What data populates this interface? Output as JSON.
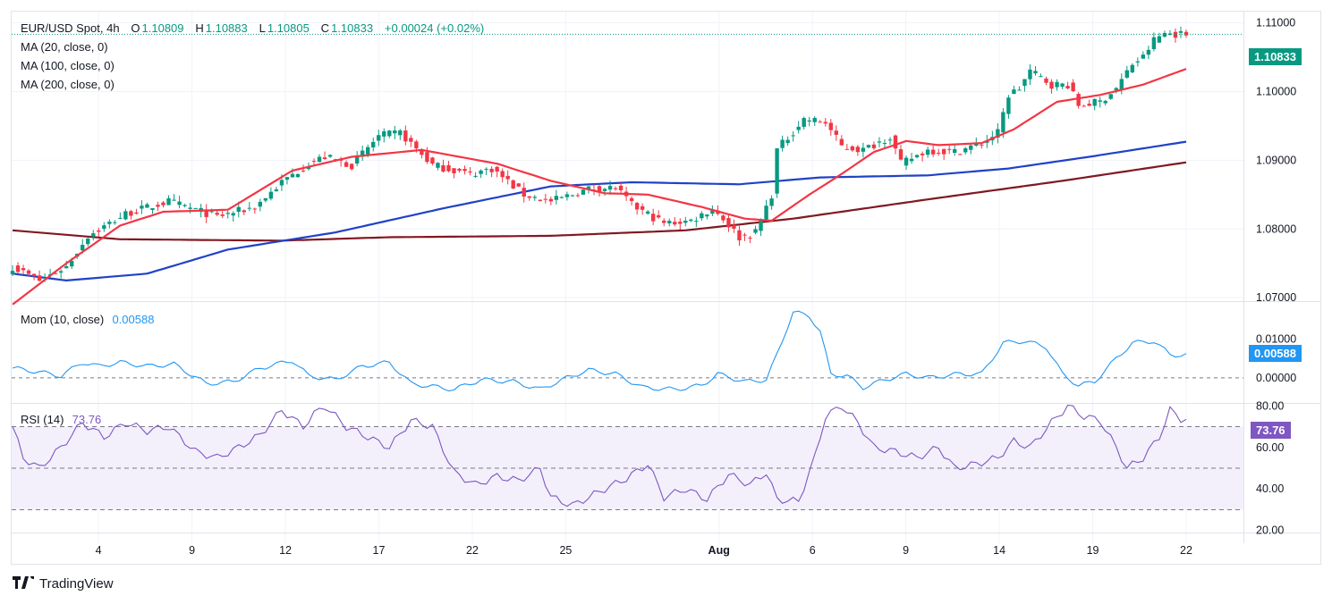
{
  "header": {
    "symbol": "EUR/USD Spot, 4h",
    "o_label": "O",
    "o": "1.10809",
    "h_label": "H",
    "h": "1.10883",
    "l_label": "L",
    "l": "1.10805",
    "c_label": "C",
    "c": "1.10833",
    "change": "+0.00024 (+0.02%)",
    "ma20": "MA (20, close, 0)",
    "ma100": "MA (100, close, 0)",
    "ma200": "MA (200, close, 0)"
  },
  "price_badge": "1.10833",
  "mom": {
    "label": "Mom (10, close)",
    "value": "0.00588"
  },
  "rsi": {
    "label": "RSI (14)",
    "value": "73.76"
  },
  "footer": {
    "brand": "TradingView"
  },
  "colors": {
    "up": "#089981",
    "down": "#f23645",
    "ma20": "#f23645",
    "ma100": "#2042c6",
    "ma200": "#801922",
    "mom": "#2196f3",
    "rsi": "#7e57c2"
  },
  "chart_data": [
    {
      "type": "candlestick",
      "title": "EUR/USD Spot, 4h",
      "x_ticks": [
        "4",
        "9",
        "12",
        "17",
        "22",
        "25",
        "Aug",
        "6",
        "9",
        "14",
        "19",
        "22"
      ],
      "y_ticks": [
        "1.11000",
        "1.10000",
        "1.09000",
        "1.08000",
        "1.07000"
      ],
      "ylim": [
        1.0695,
        1.1115
      ],
      "anchors": [
        {
          "x": 0,
          "close": 1.0745
        },
        {
          "x": 5,
          "close": 1.0725
        },
        {
          "x": 10,
          "close": 1.0745
        },
        {
          "x": 14,
          "close": 1.079
        },
        {
          "x": 21,
          "close": 1.0822
        },
        {
          "x": 29,
          "close": 1.084
        },
        {
          "x": 38,
          "close": 1.0818
        },
        {
          "x": 45,
          "close": 1.0832
        },
        {
          "x": 50,
          "close": 1.0868
        },
        {
          "x": 55,
          "close": 1.0895
        },
        {
          "x": 58,
          "close": 1.0905
        },
        {
          "x": 63,
          "close": 1.0893
        },
        {
          "x": 68,
          "close": 1.0935
        },
        {
          "x": 72,
          "close": 1.094
        },
        {
          "x": 78,
          "close": 1.0893
        },
        {
          "x": 85,
          "close": 1.088
        },
        {
          "x": 89,
          "close": 1.0888
        },
        {
          "x": 95,
          "close": 1.085
        },
        {
          "x": 100,
          "close": 1.084
        },
        {
          "x": 107,
          "close": 1.0858
        },
        {
          "x": 112,
          "close": 1.086
        },
        {
          "x": 115,
          "close": 1.0835
        },
        {
          "x": 121,
          "close": 1.0808
        },
        {
          "x": 126,
          "close": 1.0812
        },
        {
          "x": 130,
          "close": 1.083
        },
        {
          "x": 132,
          "close": 1.0815
        },
        {
          "x": 135,
          "close": 1.0788
        },
        {
          "x": 138,
          "close": 1.0795
        },
        {
          "x": 141,
          "close": 1.085
        },
        {
          "x": 142,
          "close": 1.0915
        },
        {
          "x": 147,
          "close": 1.096
        },
        {
          "x": 151,
          "close": 1.0955
        },
        {
          "x": 154,
          "close": 1.092
        },
        {
          "x": 158,
          "close": 1.0915
        },
        {
          "x": 163,
          "close": 1.0935
        },
        {
          "x": 165,
          "close": 1.0895
        },
        {
          "x": 170,
          "close": 1.0915
        },
        {
          "x": 175,
          "close": 1.0912
        },
        {
          "x": 180,
          "close": 1.0925
        },
        {
          "x": 183,
          "close": 1.094
        },
        {
          "x": 185,
          "close": 1.0995
        },
        {
          "x": 187,
          "close": 1.1005
        },
        {
          "x": 189,
          "close": 1.103
        },
        {
          "x": 193,
          "close": 1.101
        },
        {
          "x": 196,
          "close": 1.101
        },
        {
          "x": 198,
          "close": 1.098
        },
        {
          "x": 202,
          "close": 1.0985
        },
        {
          "x": 205,
          "close": 1.1005
        },
        {
          "x": 208,
          "close": 1.104
        },
        {
          "x": 210,
          "close": 1.105
        },
        {
          "x": 212,
          "close": 1.1075
        },
        {
          "x": 214,
          "close": 1.1085
        },
        {
          "x": 218,
          "close": 1.1083
        }
      ],
      "ma20_anchors": [
        {
          "x": 0,
          "y": 1.069
        },
        {
          "x": 10,
          "y": 1.075
        },
        {
          "x": 20,
          "y": 1.0805
        },
        {
          "x": 28,
          "y": 1.0825
        },
        {
          "x": 40,
          "y": 1.0828
        },
        {
          "x": 52,
          "y": 1.0885
        },
        {
          "x": 63,
          "y": 1.0905
        },
        {
          "x": 76,
          "y": 1.0915
        },
        {
          "x": 90,
          "y": 1.0895
        },
        {
          "x": 100,
          "y": 1.087
        },
        {
          "x": 110,
          "y": 1.0852
        },
        {
          "x": 118,
          "y": 1.085
        },
        {
          "x": 128,
          "y": 1.0832
        },
        {
          "x": 136,
          "y": 1.0815
        },
        {
          "x": 141,
          "y": 1.0812
        },
        {
          "x": 148,
          "y": 1.085
        },
        {
          "x": 154,
          "y": 1.088
        },
        {
          "x": 160,
          "y": 1.0912
        },
        {
          "x": 166,
          "y": 1.0928
        },
        {
          "x": 172,
          "y": 1.0922
        },
        {
          "x": 180,
          "y": 1.0925
        },
        {
          "x": 186,
          "y": 1.0945
        },
        {
          "x": 194,
          "y": 1.0985
        },
        {
          "x": 202,
          "y": 1.0995
        },
        {
          "x": 210,
          "y": 1.101
        },
        {
          "x": 218,
          "y": 1.1033
        }
      ],
      "ma100_anchors": [
        {
          "x": 0,
          "y": 1.0735
        },
        {
          "x": 10,
          "y": 1.0725
        },
        {
          "x": 25,
          "y": 1.0735
        },
        {
          "x": 40,
          "y": 1.077
        },
        {
          "x": 60,
          "y": 1.0795
        },
        {
          "x": 80,
          "y": 1.083
        },
        {
          "x": 100,
          "y": 1.0862
        },
        {
          "x": 115,
          "y": 1.0868
        },
        {
          "x": 135,
          "y": 1.0865
        },
        {
          "x": 150,
          "y": 1.0875
        },
        {
          "x": 170,
          "y": 1.0878
        },
        {
          "x": 185,
          "y": 1.0888
        },
        {
          "x": 200,
          "y": 1.0905
        },
        {
          "x": 218,
          "y": 1.0927
        }
      ],
      "ma200_anchors": [
        {
          "x": 0,
          "y": 1.0798
        },
        {
          "x": 20,
          "y": 1.0785
        },
        {
          "x": 50,
          "y": 1.0783
        },
        {
          "x": 70,
          "y": 1.0788
        },
        {
          "x": 100,
          "y": 1.079
        },
        {
          "x": 125,
          "y": 1.0798
        },
        {
          "x": 145,
          "y": 1.0815
        },
        {
          "x": 170,
          "y": 1.0843
        },
        {
          "x": 195,
          "y": 1.087
        },
        {
          "x": 218,
          "y": 1.0897
        }
      ]
    },
    {
      "type": "line",
      "title": "Mom (10, close)",
      "y_ticks": [
        "0.01000",
        "0.00000"
      ],
      "ylim": [
        -0.0065,
        0.0196
      ],
      "series": [
        {
          "name": "Mom (10, close)",
          "anchors": [
            {
              "x": 0,
              "y": 0.0025
            },
            {
              "x": 5,
              "y": 0.0015
            },
            {
              "x": 9,
              "y": 0.0005
            },
            {
              "x": 13,
              "y": 0.004
            },
            {
              "x": 16,
              "y": 0.003
            },
            {
              "x": 20,
              "y": 0.004
            },
            {
              "x": 25,
              "y": 0.003
            },
            {
              "x": 30,
              "y": 0.0035
            },
            {
              "x": 36,
              "y": -0.0015
            },
            {
              "x": 41,
              "y": -0.001
            },
            {
              "x": 46,
              "y": 0.0025
            },
            {
              "x": 52,
              "y": 0.0045
            },
            {
              "x": 55,
              "y": 0.0005
            },
            {
              "x": 60,
              "y": -0.0005
            },
            {
              "x": 65,
              "y": 0.003
            },
            {
              "x": 70,
              "y": 0.004
            },
            {
              "x": 74,
              "y": -0.0015
            },
            {
              "x": 82,
              "y": -0.003
            },
            {
              "x": 87,
              "y": -0.0005
            },
            {
              "x": 93,
              "y": -0.001
            },
            {
              "x": 98,
              "y": -0.003
            },
            {
              "x": 103,
              "y": 0.0
            },
            {
              "x": 107,
              "y": 0.002
            },
            {
              "x": 112,
              "y": 0.001
            },
            {
              "x": 117,
              "y": -0.0025
            },
            {
              "x": 123,
              "y": -0.003
            },
            {
              "x": 128,
              "y": -0.002
            },
            {
              "x": 131,
              "y": 0.001
            },
            {
              "x": 136,
              "y": -0.001
            },
            {
              "x": 140,
              "y": -0.0005
            },
            {
              "x": 142,
              "y": 0.006
            },
            {
              "x": 145,
              "y": 0.017
            },
            {
              "x": 148,
              "y": 0.016
            },
            {
              "x": 150,
              "y": 0.012
            },
            {
              "x": 152,
              "y": 0.001
            },
            {
              "x": 155,
              "y": 0.0005
            },
            {
              "x": 158,
              "y": -0.0025
            },
            {
              "x": 162,
              "y": -0.0005
            },
            {
              "x": 166,
              "y": 0.001
            },
            {
              "x": 170,
              "y": 0.0
            },
            {
              "x": 176,
              "y": 0.001
            },
            {
              "x": 180,
              "y": 0.001
            },
            {
              "x": 184,
              "y": 0.009
            },
            {
              "x": 188,
              "y": 0.0095
            },
            {
              "x": 192,
              "y": 0.008
            },
            {
              "x": 195,
              "y": 0.001
            },
            {
              "x": 198,
              "y": -0.002
            },
            {
              "x": 201,
              "y": -0.001
            },
            {
              "x": 205,
              "y": 0.005
            },
            {
              "x": 208,
              "y": 0.009
            },
            {
              "x": 212,
              "y": 0.0095
            },
            {
              "x": 215,
              "y": 0.006
            },
            {
              "x": 217,
              "y": 0.0059
            }
          ]
        }
      ]
    },
    {
      "type": "line",
      "title": "RSI (14)",
      "y_ticks": [
        "80.00",
        "60.00",
        "40.00",
        "20.00"
      ],
      "ylim": [
        19,
        81
      ],
      "bands": [
        30,
        50,
        70
      ],
      "series": [
        {
          "name": "RSI (14)",
          "anchors": [
            {
              "x": 0,
              "y": 70
            },
            {
              "x": 2,
              "y": 55
            },
            {
              "x": 5,
              "y": 50
            },
            {
              "x": 9,
              "y": 60
            },
            {
              "x": 13,
              "y": 72
            },
            {
              "x": 17,
              "y": 65
            },
            {
              "x": 21,
              "y": 72
            },
            {
              "x": 25,
              "y": 68
            },
            {
              "x": 29,
              "y": 70
            },
            {
              "x": 34,
              "y": 58
            },
            {
              "x": 38,
              "y": 55
            },
            {
              "x": 42,
              "y": 60
            },
            {
              "x": 46,
              "y": 66
            },
            {
              "x": 50,
              "y": 78
            },
            {
              "x": 54,
              "y": 70
            },
            {
              "x": 56,
              "y": 76
            },
            {
              "x": 58,
              "y": 80
            },
            {
              "x": 62,
              "y": 70
            },
            {
              "x": 66,
              "y": 65
            },
            {
              "x": 70,
              "y": 60
            },
            {
              "x": 74,
              "y": 73
            },
            {
              "x": 78,
              "y": 70
            },
            {
              "x": 82,
              "y": 48
            },
            {
              "x": 86,
              "y": 42
            },
            {
              "x": 90,
              "y": 46
            },
            {
              "x": 94,
              "y": 44
            },
            {
              "x": 98,
              "y": 50
            },
            {
              "x": 100,
              "y": 36
            },
            {
              "x": 104,
              "y": 32
            },
            {
              "x": 107,
              "y": 36
            },
            {
              "x": 110,
              "y": 40
            },
            {
              "x": 114,
              "y": 45
            },
            {
              "x": 118,
              "y": 52
            },
            {
              "x": 121,
              "y": 36
            },
            {
              "x": 125,
              "y": 40
            },
            {
              "x": 129,
              "y": 35
            },
            {
              "x": 133,
              "y": 47
            },
            {
              "x": 137,
              "y": 42
            },
            {
              "x": 140,
              "y": 48
            },
            {
              "x": 142,
              "y": 35
            },
            {
              "x": 146,
              "y": 34
            },
            {
              "x": 149,
              "y": 55
            },
            {
              "x": 151,
              "y": 75
            },
            {
              "x": 154,
              "y": 80
            },
            {
              "x": 157,
              "y": 72
            },
            {
              "x": 160,
              "y": 60
            },
            {
              "x": 164,
              "y": 58
            },
            {
              "x": 168,
              "y": 55
            },
            {
              "x": 172,
              "y": 60
            },
            {
              "x": 175,
              "y": 50
            },
            {
              "x": 179,
              "y": 52
            },
            {
              "x": 183,
              "y": 55
            },
            {
              "x": 186,
              "y": 63
            },
            {
              "x": 189,
              "y": 60
            },
            {
              "x": 193,
              "y": 72
            },
            {
              "x": 196,
              "y": 80
            },
            {
              "x": 199,
              "y": 75
            },
            {
              "x": 202,
              "y": 73
            },
            {
              "x": 205,
              "y": 60
            },
            {
              "x": 207,
              "y": 50
            },
            {
              "x": 210,
              "y": 55
            },
            {
              "x": 213,
              "y": 65
            },
            {
              "x": 215,
              "y": 78
            },
            {
              "x": 217,
              "y": 73.76
            }
          ]
        }
      ]
    }
  ]
}
